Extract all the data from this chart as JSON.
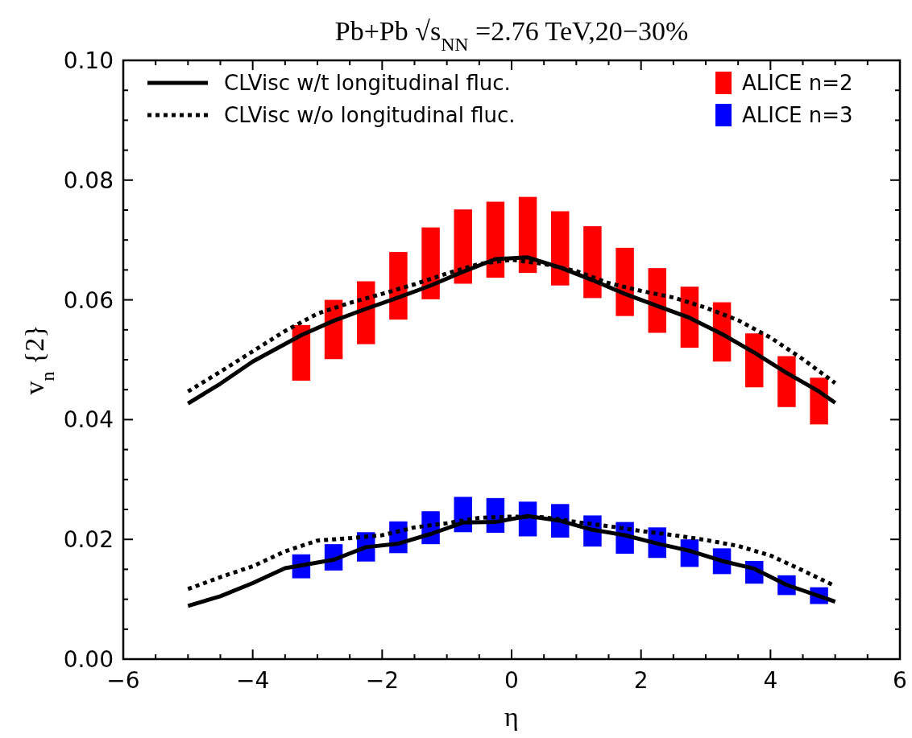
{
  "chart_data": {
    "type": "line",
    "title": "Pb+Pb √s$_{NN}$ =2.76 TeV,20−30%",
    "xlabel": "η",
    "ylabel": "v$_{n}$ {2}",
    "xlim": [
      -6,
      6
    ],
    "ylim": [
      0,
      0.1
    ],
    "xticks": [
      {
        "value": -6,
        "label": "−6"
      },
      {
        "value": -5.5,
        "label": null
      },
      {
        "value": -5,
        "label": null
      },
      {
        "value": -4.5,
        "label": null
      },
      {
        "value": -4,
        "label": "−4"
      },
      {
        "value": -3.5,
        "label": null
      },
      {
        "value": -3,
        "label": null
      },
      {
        "value": -2.5,
        "label": null
      },
      {
        "value": -2,
        "label": "−2"
      },
      {
        "value": -1.5,
        "label": null
      },
      {
        "value": -1,
        "label": null
      },
      {
        "value": -0.5,
        "label": null
      },
      0,
      {
        "value": 0.5,
        "label": null
      },
      {
        "value": 1,
        "label": null
      },
      {
        "value": 1.5,
        "label": null
      },
      2,
      {
        "value": 2.5,
        "label": null
      },
      {
        "value": 3,
        "label": null
      },
      {
        "value": 3.5,
        "label": null
      },
      4,
      {
        "value": 4.5,
        "label": null
      },
      {
        "value": 5,
        "label": null
      },
      {
        "value": 5.5,
        "label": null
      },
      6
    ],
    "yticks": [
      {
        "value": 0,
        "label": "0.00"
      },
      {
        "value": 0.005,
        "label": null
      },
      {
        "value": 0.01,
        "label": null
      },
      {
        "value": 0.015,
        "label": null
      },
      {
        "value": 0.02,
        "label": "0.02"
      },
      {
        "value": 0.025,
        "label": null
      },
      {
        "value": 0.03,
        "label": null
      },
      {
        "value": 0.035,
        "label": null
      },
      {
        "value": 0.04,
        "label": "0.04"
      },
      {
        "value": 0.045,
        "label": null
      },
      {
        "value": 0.05,
        "label": null
      },
      {
        "value": 0.055,
        "label": null
      },
      {
        "value": 0.06,
        "label": "0.06"
      },
      {
        "value": 0.065,
        "label": null
      },
      {
        "value": 0.07,
        "label": null
      },
      {
        "value": 0.075,
        "label": null
      },
      {
        "value": 0.08,
        "label": "0.08"
      },
      {
        "value": 0.085,
        "label": null
      },
      {
        "value": 0.09,
        "label": null
      },
      {
        "value": 0.095,
        "label": null
      },
      {
        "value": 0.1,
        "label": "0.10"
      }
    ],
    "legend": "top",
    "grid": false,
    "series": [
      {
        "name": "CLVisc w/t longitudinal fluc.",
        "line_style": "solid",
        "color": "#000000",
        "x": [
          -5,
          -4.5,
          -4,
          -3.25,
          -2.75,
          -2.25,
          -1.75,
          -1.25,
          -0.75,
          -0.25,
          0.25,
          0.75,
          1.25,
          1.75,
          2.25,
          2.75,
          3.25,
          3.75,
          4.25,
          4.75,
          5
        ],
        "values": [
          0.0427,
          0.046,
          0.0497,
          0.0541,
          0.0565,
          0.0585,
          0.0604,
          0.0624,
          0.0647,
          0.0668,
          0.0671,
          0.0654,
          0.0633,
          0.061,
          0.059,
          0.057,
          0.0543,
          0.0512,
          0.0478,
          0.0447,
          0.0428
        ]
      },
      {
        "name": "CLVisc w/o longitudinal fluc.",
        "line_style": "dotted",
        "color": "#000000",
        "x": [
          -5,
          -4.5,
          -4,
          -3.5,
          -3,
          -2.5,
          -2,
          -1.5,
          -1,
          -0.5,
          0,
          0.5,
          1,
          1.5,
          2,
          2.5,
          3,
          3.5,
          4,
          4.5,
          5
        ],
        "values": [
          0.0447,
          0.048,
          0.0514,
          0.0548,
          0.0577,
          0.0595,
          0.061,
          0.0626,
          0.0644,
          0.066,
          0.0667,
          0.066,
          0.0648,
          0.0628,
          0.0615,
          0.0604,
          0.0587,
          0.0566,
          0.0537,
          0.0501,
          0.0461
        ]
      },
      {
        "name": "ALICE n=2",
        "type": "bar",
        "color": "#ff0000",
        "x": [
          -3.25,
          -2.75,
          -2.25,
          -1.75,
          -1.25,
          -0.75,
          -0.25,
          0.25,
          0.75,
          1.25,
          1.75,
          2.25,
          2.75,
          3.25,
          3.75,
          4.25,
          4.75
        ],
        "base": [
          0.0465,
          0.0501,
          0.0526,
          0.0567,
          0.0601,
          0.0627,
          0.0637,
          0.0645,
          0.0624,
          0.0603,
          0.0573,
          0.0545,
          0.052,
          0.0497,
          0.0454,
          0.0421,
          0.0392
        ],
        "values": [
          0.0093,
          0.0099,
          0.0105,
          0.0113,
          0.012,
          0.0124,
          0.0127,
          0.0127,
          0.0124,
          0.012,
          0.0114,
          0.0108,
          0.0102,
          0.0099,
          0.009,
          0.0085,
          0.0078
        ]
      },
      {
        "name": "ALICE n=3",
        "type": "bar",
        "color": "#0000ff",
        "x": [
          -3.25,
          -2.75,
          -2.25,
          -1.75,
          -1.25,
          -0.75,
          -0.25,
          0.25,
          0.75,
          1.25,
          1.75,
          2.25,
          2.75,
          3.25,
          3.75,
          4.25,
          4.75
        ],
        "base": [
          0.0135,
          0.0148,
          0.0163,
          0.0177,
          0.0192,
          0.0212,
          0.0211,
          0.0205,
          0.0203,
          0.0188,
          0.0176,
          0.0169,
          0.0154,
          0.0142,
          0.0126,
          0.0107,
          0.0092
        ],
        "values": [
          0.004,
          0.0044,
          0.0049,
          0.0053,
          0.0055,
          0.0059,
          0.0058,
          0.0058,
          0.0056,
          0.0052,
          0.0053,
          0.0051,
          0.0046,
          0.0043,
          0.0038,
          0.0033,
          0.0028
        ]
      },
      {
        "line_style": "solid",
        "color": "#000000",
        "x": [
          -5,
          -4.5,
          -4,
          -3.5,
          -2.75,
          -2.25,
          -1.75,
          -1.25,
          -0.75,
          -0.25,
          0.25,
          0.75,
          1.25,
          1.75,
          2.25,
          2.75,
          3.25,
          3.75,
          4.25,
          5
        ],
        "values": [
          0.0089,
          0.0105,
          0.0127,
          0.0152,
          0.0166,
          0.0187,
          0.0193,
          0.0209,
          0.0228,
          0.0229,
          0.0239,
          0.0231,
          0.0216,
          0.0207,
          0.0193,
          0.0181,
          0.0164,
          0.0151,
          0.0124,
          0.0096
        ]
      },
      {
        "line_style": "dotted",
        "color": "#000000",
        "x": [
          -5,
          -4.5,
          -4,
          -3.5,
          -3,
          -2.5,
          -2,
          -1.5,
          -1,
          -0.5,
          0,
          0.5,
          1,
          1.5,
          2,
          2.5,
          3,
          3.5,
          4,
          4.5,
          5
        ],
        "values": [
          0.0117,
          0.0137,
          0.0155,
          0.018,
          0.0198,
          0.0202,
          0.0207,
          0.022,
          0.0227,
          0.0236,
          0.0238,
          0.0237,
          0.0229,
          0.0222,
          0.0214,
          0.0207,
          0.0199,
          0.0189,
          0.0173,
          0.0148,
          0.0122
        ]
      }
    ]
  }
}
